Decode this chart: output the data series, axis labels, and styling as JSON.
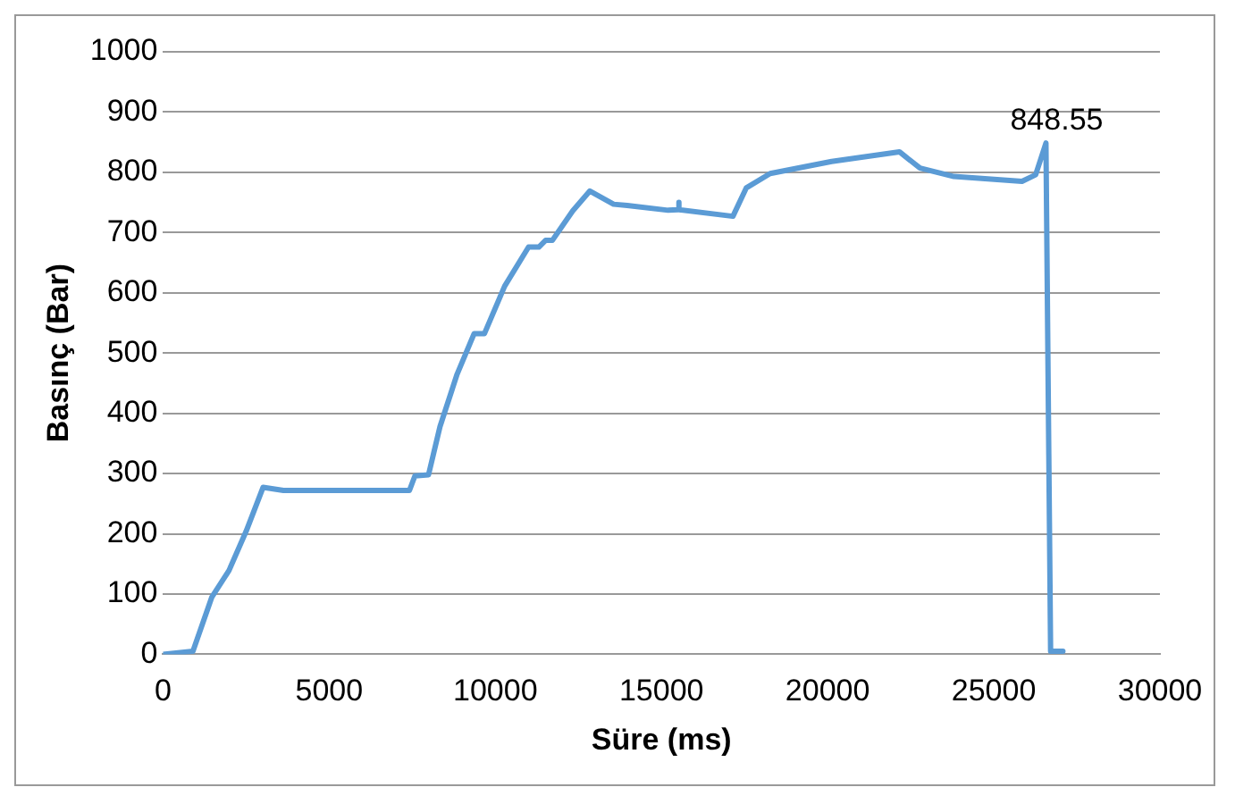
{
  "chart_data": {
    "type": "line",
    "xlabel": "Süre (ms)",
    "ylabel": "Basınç (Bar)",
    "x": [
      0,
      900,
      1470,
      1985,
      2500,
      3010,
      3625,
      7415,
      7580,
      7990,
      8335,
      8850,
      9360,
      9670,
      10280,
      11000,
      11310,
      11510,
      11715,
      12330,
      12845,
      13560,
      13970,
      15200,
      15510,
      15520,
      15530,
      17150,
      17550,
      18270,
      20120,
      22160,
      22780,
      23800,
      25850,
      26260,
      26570,
      26710,
      27080
    ],
    "series": [
      {
        "color": "#5b9bd5",
        "values": [
          0,
          5,
          95,
          139,
          204,
          277,
          272,
          272,
          296,
          298,
          378,
          465,
          532,
          532,
          611,
          676,
          676,
          687,
          687,
          736,
          769,
          747,
          745,
          737,
          738,
          750,
          738,
          727,
          774,
          798,
          818,
          834,
          807,
          793,
          785,
          796,
          848.55,
          5,
          5
        ]
      }
    ],
    "xlim": [
      0,
      30000
    ],
    "xticks": [
      0,
      5000,
      10000,
      15000,
      20000,
      25000,
      30000
    ],
    "ylim": [
      0,
      1000
    ],
    "yticks": [
      0,
      100,
      200,
      300,
      400,
      500,
      600,
      700,
      800,
      900,
      1000
    ],
    "grid": "y",
    "legend": false,
    "marker": "none",
    "line_style": "solid",
    "annotations": [
      {
        "text": "848.55",
        "x": 26570,
        "y": 848.55
      }
    ]
  }
}
